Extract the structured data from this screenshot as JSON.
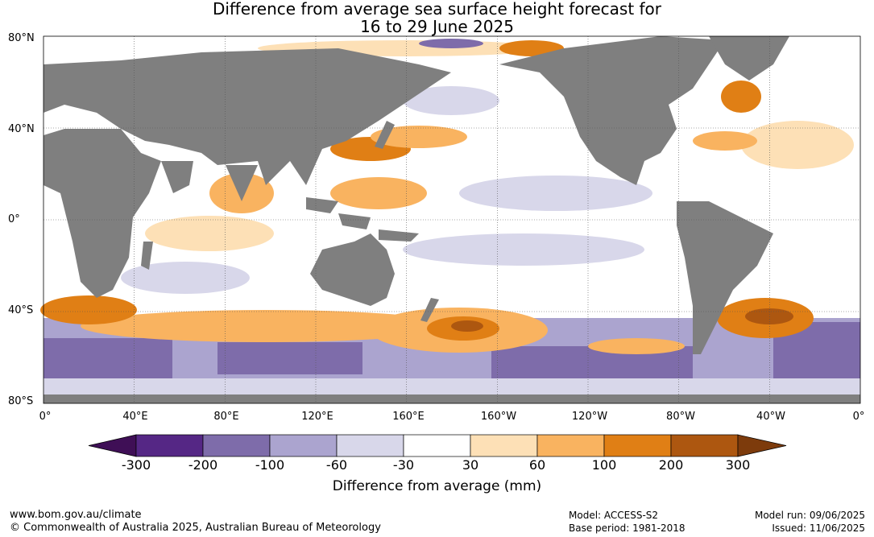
{
  "title_line1": "Difference from average sea surface height forecast for",
  "title_line2": "16 to 29 June 2025",
  "lat_labels": [
    "80°N",
    "40°N",
    "0°",
    "40°S",
    "80°S"
  ],
  "lon_labels": [
    "0°",
    "40°E",
    "80°E",
    "120°E",
    "160°E",
    "160°W",
    "120°W",
    "80°W",
    "40°W",
    "0°"
  ],
  "colorbar": {
    "ticks": [
      "-300",
      "-200",
      "-100",
      "-60",
      "-30",
      "30",
      "60",
      "100",
      "200",
      "300"
    ],
    "colors": [
      "#3f0f56",
      "#552785",
      "#7e6caa",
      "#aba4cf",
      "#d8d7ea",
      "#ffffff",
      "#fde0b6",
      "#f9b360",
      "#e07f15",
      "#ad5710",
      "#7d3b0c"
    ],
    "label": "Difference from average (mm)"
  },
  "footer": {
    "url": "www.bom.gov.au/climate",
    "copyright": "© Commonwealth of Australia 2025, Australian Bureau of Meteorology",
    "model": "Model: ACCESS-S2",
    "base_period": "Base period: 1981-2018",
    "model_run": "Model run: 09/06/2025",
    "issued": "Issued: 11/06/2025"
  },
  "colors": {
    "land": "#7f7f7f",
    "grid": "#555555"
  }
}
